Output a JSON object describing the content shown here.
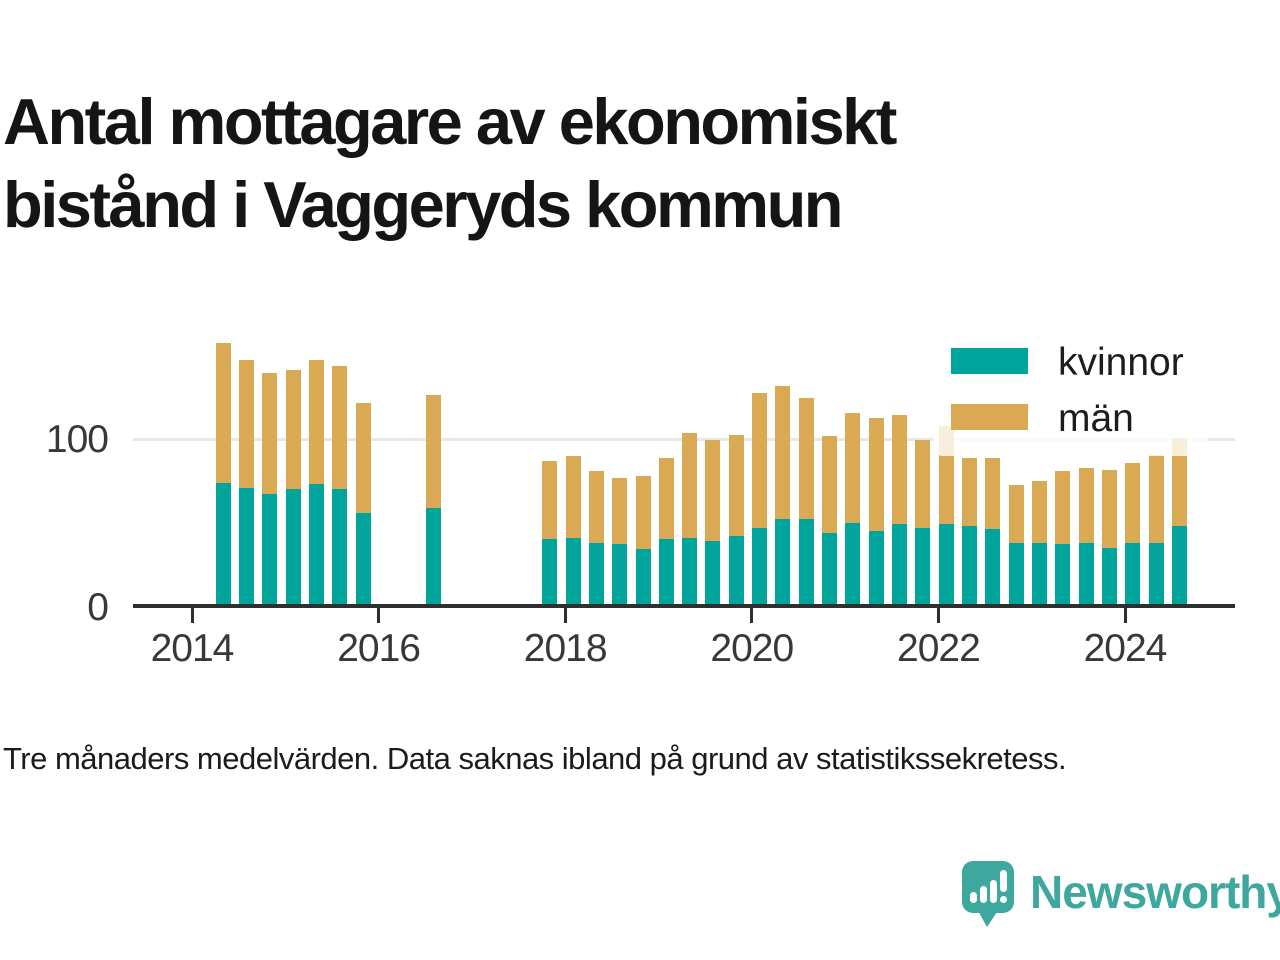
{
  "title": "Antal mottagare av ekonomiskt bistånd i Vaggeryds kommun",
  "footnote": "Tre månaders medelvärden. Data saknas ibland på grund av statistikssekretess.",
  "brand": {
    "name": "Newsworthy",
    "icon": "speech-bubble-bar-chart-icon",
    "color": "#3ea89f"
  },
  "colors": {
    "kvinnor": "#00a49a",
    "man": "#d9a953",
    "axis": "#2f2f2f",
    "grid": "#e7e7e7"
  },
  "legend": {
    "kvinnor_label": "kvinnor",
    "man_label": "män"
  },
  "chart_data": {
    "type": "bar",
    "stacked": true,
    "title": "Antal mottagare av ekonomiskt bistånd i Vaggeryds kommun",
    "xlabel": "",
    "ylabel": "",
    "ylim": [
      0,
      160
    ],
    "y_gridlines": [
      100
    ],
    "y_tick_values": [
      0,
      100
    ],
    "x_tick_years": [
      2014,
      2016,
      2018,
      2020,
      2022,
      2024
    ],
    "legend_position": "top-right",
    "series_names": [
      "kvinnor",
      "män"
    ],
    "note": "quarterly 3-month averages, gaps where data is missing",
    "points": [
      {
        "period": "2014-05",
        "kvinnor": 74,
        "man": 84
      },
      {
        "period": "2014-08",
        "kvinnor": 71,
        "man": 77
      },
      {
        "period": "2014-11",
        "kvinnor": 67,
        "man": 73
      },
      {
        "period": "2015-02",
        "kvinnor": 70,
        "man": 72
      },
      {
        "period": "2015-05",
        "kvinnor": 73,
        "man": 75
      },
      {
        "period": "2015-08",
        "kvinnor": 70,
        "man": 74
      },
      {
        "period": "2015-11",
        "kvinnor": 56,
        "man": 66
      },
      {
        "period": "2016-08",
        "kvinnor": 59,
        "man": 68
      },
      {
        "period": "2017-11",
        "kvinnor": 40,
        "man": 47
      },
      {
        "period": "2018-02",
        "kvinnor": 41,
        "man": 49
      },
      {
        "period": "2018-05",
        "kvinnor": 38,
        "man": 43
      },
      {
        "period": "2018-08",
        "kvinnor": 37,
        "man": 40
      },
      {
        "period": "2018-11",
        "kvinnor": 34,
        "man": 44
      },
      {
        "period": "2019-02",
        "kvinnor": 40,
        "man": 49
      },
      {
        "period": "2019-05",
        "kvinnor": 41,
        "man": 63
      },
      {
        "period": "2019-08",
        "kvinnor": 39,
        "man": 61
      },
      {
        "period": "2019-11",
        "kvinnor": 42,
        "man": 61
      },
      {
        "period": "2020-02",
        "kvinnor": 47,
        "man": 81
      },
      {
        "period": "2020-05",
        "kvinnor": 52,
        "man": 80
      },
      {
        "period": "2020-08",
        "kvinnor": 52,
        "man": 73
      },
      {
        "period": "2020-11",
        "kvinnor": 44,
        "man": 58
      },
      {
        "period": "2021-02",
        "kvinnor": 50,
        "man": 66
      },
      {
        "period": "2021-05",
        "kvinnor": 45,
        "man": 68
      },
      {
        "period": "2021-08",
        "kvinnor": 49,
        "man": 66
      },
      {
        "period": "2021-11",
        "kvinnor": 47,
        "man": 53
      },
      {
        "period": "2022-02",
        "kvinnor": 49,
        "man": 59
      },
      {
        "period": "2022-05",
        "kvinnor": 48,
        "man": 41
      },
      {
        "period": "2022-08",
        "kvinnor": 46,
        "man": 43
      },
      {
        "period": "2022-11",
        "kvinnor": 38,
        "man": 35
      },
      {
        "period": "2023-02",
        "kvinnor": 38,
        "man": 37
      },
      {
        "period": "2023-05",
        "kvinnor": 37,
        "man": 44
      },
      {
        "period": "2023-08",
        "kvinnor": 38,
        "man": 45
      },
      {
        "period": "2023-11",
        "kvinnor": 35,
        "man": 47
      },
      {
        "period": "2024-02",
        "kvinnor": 38,
        "man": 48
      },
      {
        "period": "2024-05",
        "kvinnor": 38,
        "man": 53
      },
      {
        "period": "2024-08",
        "kvinnor": 48,
        "man": 53
      }
    ]
  }
}
